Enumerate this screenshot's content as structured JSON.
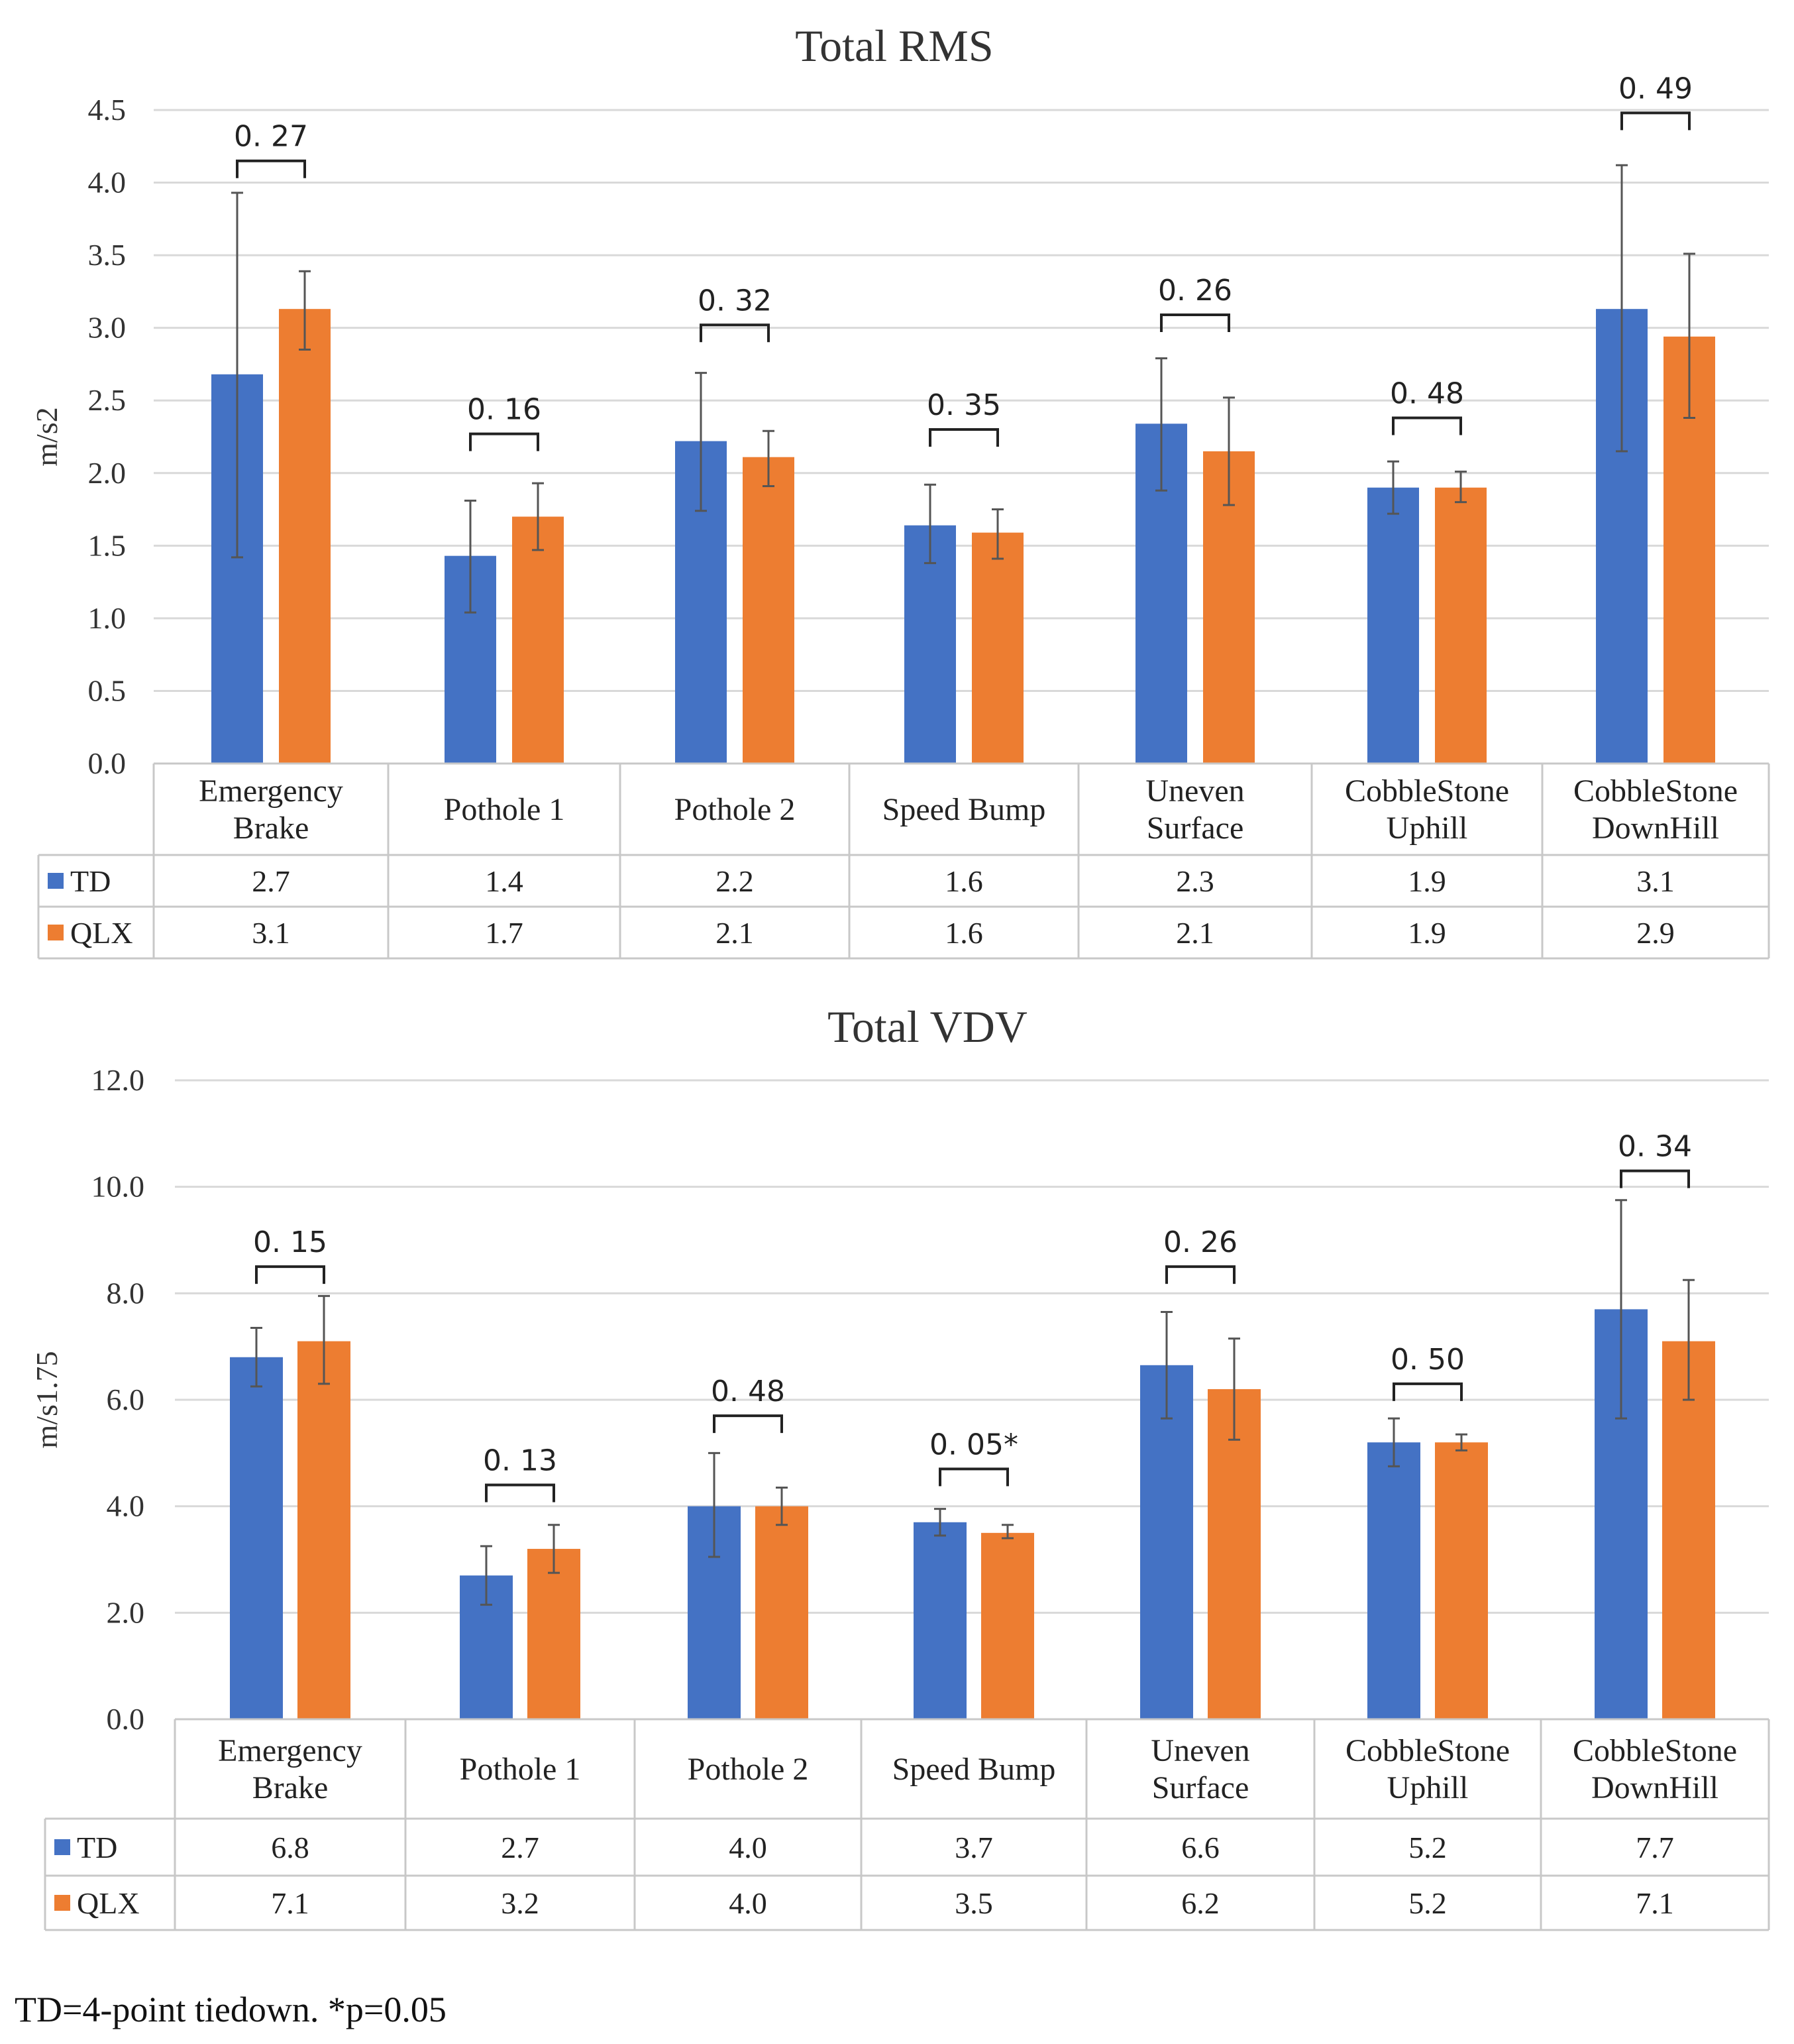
{
  "colors": {
    "TD": "#4472c4",
    "QLX": "#ed7d31",
    "error_bar": "#555555"
  },
  "footnote": "TD=4-point tiedown. *p=0.05",
  "chart_data": [
    {
      "type": "bar",
      "title": "Total RMS",
      "ylabel": "m/s2",
      "ylim": [
        0,
        4.5
      ],
      "yticks": [
        "0.0",
        "0.5",
        "1.0",
        "1.5",
        "2.0",
        "2.5",
        "3.0",
        "3.5",
        "4.0",
        "4.5"
      ],
      "categories": [
        [
          "Emergency",
          "Brake"
        ],
        [
          "Pothole 1"
        ],
        [
          "Pothole 2"
        ],
        [
          "Speed Bump"
        ],
        [
          "Uneven",
          "Surface"
        ],
        [
          "CobbleStone",
          "Uphill"
        ],
        [
          "CobbleStone",
          "DownHill"
        ]
      ],
      "series": [
        {
          "name": "TD",
          "values": [
            2.68,
            1.43,
            2.22,
            1.64,
            2.34,
            1.9,
            3.13
          ],
          "labels": [
            "2.7",
            "1.4",
            "2.2",
            "1.6",
            "2.3",
            "1.9",
            "3.1"
          ],
          "err_low": [
            1.42,
            1.04,
            1.74,
            1.38,
            1.88,
            1.72,
            2.15
          ],
          "err_high": [
            3.93,
            1.81,
            2.69,
            1.92,
            2.79,
            2.08,
            4.12
          ]
        },
        {
          "name": "QLX",
          "values": [
            3.13,
            1.7,
            2.11,
            1.59,
            2.15,
            1.9,
            2.94
          ],
          "labels": [
            "3.1",
            "1.7",
            "2.1",
            "1.6",
            "2.1",
            "1.9",
            "2.9"
          ],
          "err_low": [
            2.85,
            1.47,
            1.91,
            1.41,
            1.78,
            1.8,
            2.38
          ],
          "err_high": [
            3.39,
            1.93,
            2.29,
            1.75,
            2.52,
            2.01,
            3.51
          ]
        }
      ],
      "pvalues": [
        "0. 27",
        "0. 16",
        "0. 32",
        "0. 35",
        "0. 26",
        "0. 48",
        "0. 49"
      ],
      "bracket_y": [
        4.15,
        2.27,
        3.02,
        2.3,
        3.09,
        2.38,
        4.48
      ]
    },
    {
      "type": "bar",
      "title": "Total VDV",
      "ylabel": "m/s1.75",
      "ylim": [
        0,
        12
      ],
      "yticks": [
        "0.0",
        "2.0",
        "4.0",
        "6.0",
        "8.0",
        "10.0",
        "12.0"
      ],
      "categories": [
        [
          "Emergency",
          "Brake"
        ],
        [
          "Pothole 1"
        ],
        [
          "Pothole 2"
        ],
        [
          "Speed Bump"
        ],
        [
          "Uneven",
          "Surface"
        ],
        [
          "CobbleStone",
          "Uphill"
        ],
        [
          "CobbleStone",
          "DownHill"
        ]
      ],
      "series": [
        {
          "name": "TD",
          "values": [
            6.8,
            2.7,
            4.0,
            3.7,
            6.65,
            5.2,
            7.7
          ],
          "labels": [
            "6.8",
            "2.7",
            "4.0",
            "3.7",
            "6.6",
            "5.2",
            "7.7"
          ],
          "err_low": [
            6.25,
            2.15,
            3.05,
            3.45,
            5.65,
            4.75,
            5.65
          ],
          "err_high": [
            7.35,
            3.25,
            5.0,
            3.95,
            7.65,
            5.65,
            9.75
          ]
        },
        {
          "name": "QLX",
          "values": [
            7.1,
            3.2,
            4.0,
            3.5,
            6.2,
            5.2,
            7.1
          ],
          "labels": [
            "7.1",
            "3.2",
            "4.0",
            "3.5",
            "6.2",
            "5.2",
            "7.1"
          ],
          "err_low": [
            6.3,
            2.75,
            3.65,
            3.4,
            5.25,
            5.05,
            6.0
          ],
          "err_high": [
            7.95,
            3.65,
            4.35,
            3.65,
            7.15,
            5.35,
            8.25
          ]
        }
      ],
      "pvalues": [
        "0. 15",
        "0. 13",
        "0. 48",
        "0. 05*",
        "0. 26",
        "0. 50",
        "0. 34"
      ],
      "bracket_y": [
        8.5,
        4.4,
        5.7,
        4.7,
        8.5,
        6.3,
        10.3
      ]
    }
  ]
}
